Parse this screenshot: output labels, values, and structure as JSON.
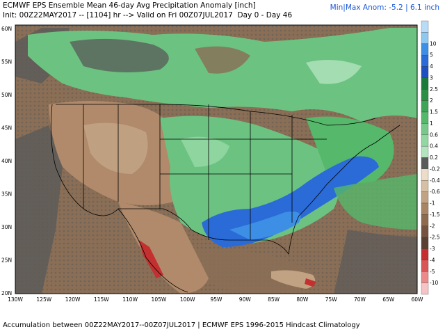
{
  "header": {
    "title": "ECMWF EPS Ensemble Mean 46-day Avg Precipitation Anomaly [inch]",
    "init_line": "Init: 00Z22MAY2017 -- [1104] hr --> Valid on Fri 00Z07JUL2017  Day 0 - Day 46",
    "minmax": "Min|Max Anom: -5.2 | 6.1 inch"
  },
  "footer": "Accumulation between 00Z22MAY2017--00Z07JUL2017 | ECMWF EPS 1996-2015 Hindcast Climatology",
  "axes": {
    "lat_labels": [
      "60N",
      "55N",
      "50N",
      "45N",
      "40N",
      "35N",
      "30N",
      "25N",
      "20N"
    ],
    "lon_labels": [
      "130W",
      "125W",
      "120W",
      "115W",
      "110W",
      "105W",
      "100W",
      "95W",
      "90W",
      "85W",
      "80W",
      "75W",
      "70W",
      "65W",
      "60W"
    ]
  },
  "legend": {
    "levels": [
      {
        "label": "",
        "color": "#b8dcf8"
      },
      {
        "label": "10",
        "color": "#8ec8f0"
      },
      {
        "label": "5",
        "color": "#3d8fe6"
      },
      {
        "label": "4",
        "color": "#2a6bd8"
      },
      {
        "label": "3",
        "color": "#1f4fc0"
      },
      {
        "label": "2.5",
        "color": "#1c7a3a"
      },
      {
        "label": "2",
        "color": "#2b8f44"
      },
      {
        "label": "1.5",
        "color": "#3ea556"
      },
      {
        "label": "1",
        "color": "#55b86a"
      },
      {
        "label": "0.6",
        "color": "#76c989"
      },
      {
        "label": "0.4",
        "color": "#92d7a2"
      },
      {
        "label": "0.2",
        "color": "#b2e4bd"
      },
      {
        "label": "-0.2",
        "color": "#5a5a5a"
      },
      {
        "label": "-0.4",
        "color": "#eddcc8"
      },
      {
        "label": "-0.6",
        "color": "#d7bfa3"
      },
      {
        "label": "-1",
        "color": "#c1a283"
      },
      {
        "label": "-1.5",
        "color": "#a98564"
      },
      {
        "label": "-2",
        "color": "#8f6b4e"
      },
      {
        "label": "-2.5",
        "color": "#745441"
      },
      {
        "label": "-3",
        "color": "#5a3f33"
      },
      {
        "label": "-4",
        "color": "#c43030"
      },
      {
        "label": "-5",
        "color": "#d95656"
      },
      {
        "label": "-10",
        "color": "#ea8a8a"
      },
      {
        "label": "",
        "color": "#f6c4c4"
      }
    ]
  },
  "colors": {
    "ocean_dry": "#8a6e55",
    "neutral": "#5a5a5a",
    "wet_blue": "#2a6bd8",
    "wet_green": "#6cc381",
    "land_brown": "#b08a6a",
    "dry_red": "#c43030"
  }
}
